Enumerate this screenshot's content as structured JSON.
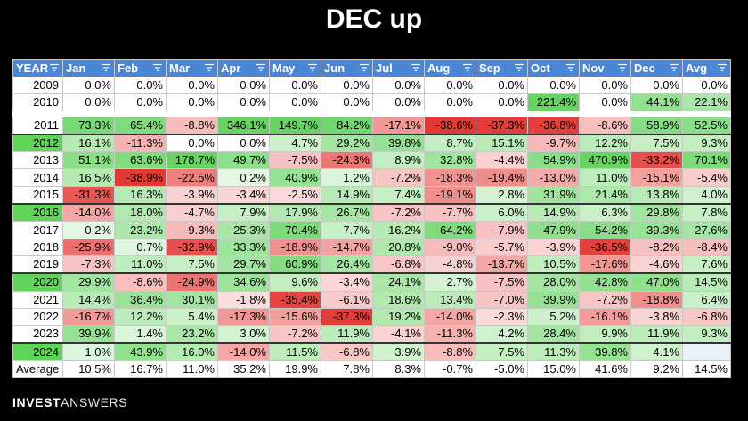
{
  "title": "DEC up",
  "footer": {
    "brand_bold": "INVEST",
    "brand_light": "ANSWERS"
  },
  "colors": {
    "header_bg": "#4a86d4",
    "highlight_year": "#5fd35a",
    "pos_strong": "#7ee07a",
    "pos_light": "#e6f6e6",
    "neg_strong": "#e43a36",
    "neg_light": "#fbe3e3"
  },
  "table": {
    "headers": [
      "YEAR",
      "Jan",
      "Feb",
      "Mar",
      "Apr",
      "May",
      "Jun",
      "Jul",
      "Aug",
      "Sep",
      "Oct",
      "Nov",
      "Dec",
      "Avg"
    ],
    "rows": [
      {
        "year": "2009",
        "hl": false,
        "v": [
          "0.0%",
          "0.0%",
          "0.0%",
          "0.0%",
          "0.0%",
          "0.0%",
          "0.0%",
          "0.0%",
          "0.0%",
          "0.0%",
          "0.0%",
          "0.0%",
          "0.0%"
        ]
      },
      {
        "year": "2010",
        "hl": false,
        "v": [
          "0.0%",
          "0.0%",
          "0.0%",
          "0.0%",
          "0.0%",
          "0.0%",
          "0.0%",
          "0.0%",
          "0.0%",
          "221.4%",
          "0.0%",
          "44.1%",
          "22.1%"
        ]
      },
      {
        "year": "2011",
        "hl": false,
        "v": [
          "73.3%",
          "65.4%",
          "-8.8%",
          "346.1%",
          "149.7%",
          "84.2%",
          "-17.1%",
          "-38.6%",
          "-37.3%",
          "-36.8%",
          "-8.6%",
          "58.9%",
          "52.5%"
        ]
      },
      {
        "year": "2012",
        "hl": true,
        "v": [
          "16.1%",
          "-11.3%",
          "0.0%",
          "0.0%",
          "4.7%",
          "29.2%",
          "39.8%",
          "8.7%",
          "15.1%",
          "-9.7%",
          "12.2%",
          "7.5%",
          "9.3%"
        ]
      },
      {
        "year": "2013",
        "hl": false,
        "v": [
          "51.1%",
          "63.6%",
          "178.7%",
          "49.7%",
          "-7.5%",
          "-24.3%",
          "8.9%",
          "32.8%",
          "-4.4%",
          "54.9%",
          "470.9%",
          "-33.2%",
          "70.1%"
        ]
      },
      {
        "year": "2014",
        "hl": false,
        "v": [
          "16.5%",
          "-38.9%",
          "-22.5%",
          "0.2%",
          "40.9%",
          "1.2%",
          "-7.2%",
          "-18.3%",
          "-19.4%",
          "-13.0%",
          "11.0%",
          "-15.1%",
          "-5.4%"
        ]
      },
      {
        "year": "2015",
        "hl": false,
        "v": [
          "-31.3%",
          "16.3%",
          "-3.9%",
          "-3.4%",
          "-2.5%",
          "14.9%",
          "7.4%",
          "-19.1%",
          "2.8%",
          "31.9%",
          "21.4%",
          "13.8%",
          "4.0%"
        ]
      },
      {
        "year": "2016",
        "hl": true,
        "v": [
          "-14.0%",
          "18.0%",
          "-4.7%",
          "7.9%",
          "17.9%",
          "26.7%",
          "-7.2%",
          "-7.7%",
          "6.0%",
          "14.9%",
          "6.3%",
          "29.8%",
          "7.8%"
        ]
      },
      {
        "year": "2017",
        "hl": false,
        "v": [
          "0.2%",
          "23.2%",
          "-9.3%",
          "25.3%",
          "70.4%",
          "7.7%",
          "16.2%",
          "64.2%",
          "-7.9%",
          "47.9%",
          "54.2%",
          "39.3%",
          "27.6%"
        ]
      },
      {
        "year": "2018",
        "hl": false,
        "v": [
          "-25.9%",
          "0.7%",
          "-32.9%",
          "33.3%",
          "-18.9%",
          "-14.7%",
          "20.8%",
          "-9.0%",
          "-5.7%",
          "-3.9%",
          "-36.5%",
          "-8.2%",
          "-8.4%"
        ]
      },
      {
        "year": "2019",
        "hl": false,
        "v": [
          "-7.3%",
          "11.0%",
          "7.5%",
          "29.7%",
          "60.9%",
          "26.4%",
          "-6.8%",
          "-4.8%",
          "-13.7%",
          "10.5%",
          "-17.6%",
          "-4.6%",
          "7.6%"
        ]
      },
      {
        "year": "2020",
        "hl": true,
        "v": [
          "29.9%",
          "-8.6%",
          "-24.9%",
          "34.6%",
          "9.6%",
          "-3.4%",
          "24.1%",
          "2.7%",
          "-7.5%",
          "28.0%",
          "42.8%",
          "47.0%",
          "14.5%"
        ]
      },
      {
        "year": "2021",
        "hl": false,
        "v": [
          "14.4%",
          "36.4%",
          "30.1%",
          "-1.8%",
          "-35.4%",
          "-6.1%",
          "18.6%",
          "13.4%",
          "-7.0%",
          "39.9%",
          "-7.2%",
          "-18.8%",
          "6.4%"
        ]
      },
      {
        "year": "2022",
        "hl": false,
        "v": [
          "-16.7%",
          "12.2%",
          "5.4%",
          "-17.3%",
          "-15.6%",
          "-37.3%",
          "19.2%",
          "-14.0%",
          "-2.3%",
          "5.2%",
          "-16.1%",
          "-3.8%",
          "-6.8%"
        ]
      },
      {
        "year": "2023",
        "hl": false,
        "v": [
          "39.9%",
          "1.4%",
          "23.2%",
          "3.0%",
          "-7.2%",
          "11.9%",
          "-4.1%",
          "-11.3%",
          "4.2%",
          "28.4%",
          "9.9%",
          "11.9%",
          "9.3%"
        ]
      },
      {
        "year": "2024",
        "hl": true,
        "v": [
          "1.0%",
          "43.9%",
          "16.0%",
          "-14.0%",
          "11.5%",
          "-6.8%",
          "3.9%",
          "-8.8%",
          "7.5%",
          "11.3%",
          "39.8%",
          "4.1%",
          ""
        ]
      }
    ],
    "average": {
      "label": "Average",
      "v": [
        "10.5%",
        "16.7%",
        "11.0%",
        "35.2%",
        "19.9%",
        "7.8%",
        "8.3%",
        "-0.7%",
        "-5.0%",
        "15.0%",
        "41.6%",
        "9.2%",
        "14.5%"
      ]
    }
  }
}
